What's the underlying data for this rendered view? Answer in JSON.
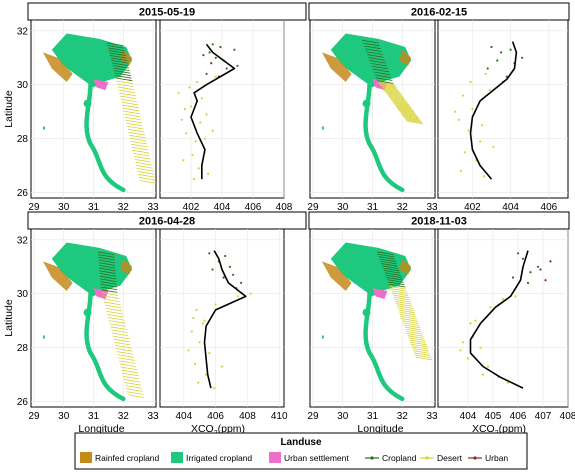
{
  "colors": {
    "rainfed": "#c48a1c",
    "irrigated": "#1ec97f",
    "urban_settlement": "#ee6fc9",
    "cropland_track": "#2f6e1f",
    "desert_track": "#d8d234",
    "urban_track": "#8a2b2b",
    "mean_line": "#000000",
    "grid": "#e6e6e6"
  },
  "shared_axes": {
    "map_xlabel": "Longitude",
    "map_ylabel": "Latitude",
    "map_xticks": [
      "29",
      "30",
      "31",
      "32",
      "33"
    ],
    "lat_ticks": [
      "26",
      "28",
      "30",
      "32"
    ],
    "xco2_xlabel": "XCO",
    "xco2_sub": "2",
    "xco2_unit": "(ppm)"
  },
  "legend": {
    "title": "Landuse",
    "items": [
      {
        "label": "Rainfed cropland",
        "kind": "swatch",
        "color_key": "rainfed"
      },
      {
        "label": "Irrigated cropland",
        "kind": "swatch",
        "color_key": "irrigated"
      },
      {
        "label": "Urban settlement",
        "kind": "swatch",
        "color_key": "urban_settlement"
      },
      {
        "label": "Cropland",
        "kind": "line",
        "color_key": "cropland_track"
      },
      {
        "label": "Desert",
        "kind": "line",
        "color_key": "desert_track"
      },
      {
        "label": "Urban",
        "kind": "line",
        "color_key": "urban_track"
      }
    ]
  },
  "chart_data": [
    {
      "type": "scatter",
      "title": "2015-05-19",
      "xlabel": "XCO2(ppm)",
      "ylabel": "Latitude",
      "xlim": [
        400,
        408
      ],
      "ylim": [
        25.8,
        32.4
      ],
      "xticks": [
        "402",
        "404",
        "406",
        "408"
      ],
      "series": [
        {
          "name": "Cropland",
          "points": [
            [
              403.2,
              31.2
            ],
            [
              404.3,
              30.6
            ],
            [
              403.6,
              31.0
            ],
            [
              403.0,
              30.4
            ],
            [
              404.8,
              31.3
            ],
            [
              403.4,
              31.5
            ],
            [
              404.1,
              30.9
            ],
            [
              405.0,
              30.7
            ],
            [
              402.8,
              31.1
            ],
            [
              403.9,
              31.4
            ]
          ]
        },
        {
          "name": "Desert",
          "points": [
            [
              401.2,
              29.7
            ],
            [
              402.0,
              29.2
            ],
            [
              402.6,
              28.6
            ],
            [
              401.7,
              28.2
            ],
            [
              402.3,
              27.9
            ],
            [
              402.9,
              27.5
            ],
            [
              401.5,
              27.2
            ],
            [
              402.5,
              26.9
            ],
            [
              403.1,
              26.7
            ],
            [
              401.9,
              29.9
            ],
            [
              402.4,
              30.1
            ],
            [
              403.0,
              28.9
            ],
            [
              402.1,
              27.4
            ],
            [
              403.4,
              28.3
            ],
            [
              401.4,
              28.7
            ],
            [
              402.7,
              29.5
            ],
            [
              403.6,
              30.3
            ],
            [
              402.2,
              26.5
            ],
            [
              401.6,
              29.1
            ],
            [
              402.9,
              28.0
            ]
          ]
        },
        {
          "name": "Urban",
          "points": [
            [
              403.8,
              30.3
            ],
            [
              403.3,
              30.8
            ]
          ]
        }
      ],
      "mean_line": [
        [
          402.7,
          26.5
        ],
        [
          402.7,
          27.0
        ],
        [
          402.9,
          27.6
        ],
        [
          402.4,
          28.2
        ],
        [
          402.0,
          28.8
        ],
        [
          402.4,
          29.4
        ],
        [
          402.2,
          29.7
        ],
        [
          403.0,
          30.0
        ],
        [
          404.8,
          30.6
        ],
        [
          403.4,
          31.2
        ],
        [
          403.0,
          31.5
        ]
      ]
    },
    {
      "type": "scatter",
      "title": "2016-02-15",
      "xlabel": "XCO2(ppm)",
      "ylabel": "Latitude",
      "xlim": [
        400.2,
        407
      ],
      "ylim": [
        25.8,
        32.4
      ],
      "xticks": [
        "402",
        "404",
        "406"
      ],
      "series": [
        {
          "name": "Cropland",
          "points": [
            [
              403.5,
              31.2
            ],
            [
              404.2,
              30.8
            ],
            [
              403.0,
              31.4
            ],
            [
              404.6,
              31.0
            ],
            [
              402.8,
              30.6
            ],
            [
              403.8,
              30.3
            ],
            [
              404.0,
              31.3
            ],
            [
              403.3,
              30.9
            ]
          ]
        },
        {
          "name": "Desert",
          "points": [
            [
              401.5,
              29.6
            ],
            [
              402.0,
              29.1
            ],
            [
              401.3,
              28.7
            ],
            [
              401.8,
              28.3
            ],
            [
              402.4,
              27.9
            ],
            [
              401.6,
              27.5
            ],
            [
              402.2,
              27.2
            ],
            [
              401.4,
              26.8
            ],
            [
              402.6,
              26.6
            ],
            [
              402.9,
              29.8
            ],
            [
              401.1,
              29.0
            ],
            [
              402.5,
              28.5
            ],
            [
              403.1,
              27.7
            ],
            [
              401.9,
              30.1
            ],
            [
              402.7,
              30.4
            ]
          ]
        },
        {
          "name": "Urban",
          "points": [
            [
              403.6,
              30.1
            ]
          ]
        }
      ],
      "mean_line": [
        [
          403.0,
          26.5
        ],
        [
          402.4,
          27.0
        ],
        [
          402.0,
          27.6
        ],
        [
          401.9,
          28.2
        ],
        [
          402.0,
          28.8
        ],
        [
          402.4,
          29.4
        ],
        [
          403.1,
          29.8
        ],
        [
          403.8,
          30.2
        ],
        [
          404.2,
          30.6
        ],
        [
          404.3,
          31.2
        ],
        [
          404.1,
          31.6
        ]
      ]
    },
    {
      "type": "scatter",
      "title": "2016-04-28",
      "xlabel": "XCO2(ppm)",
      "ylabel": "Latitude",
      "xlim": [
        402.5,
        410.3
      ],
      "ylim": [
        25.8,
        32.4
      ],
      "xticks": [
        "404",
        "406",
        "408",
        "410"
      ],
      "series": [
        {
          "name": "Cropland",
          "points": [
            [
              406.2,
              31.2
            ],
            [
              407.1,
              30.7
            ],
            [
              406.6,
              31.4
            ],
            [
              405.8,
              30.9
            ],
            [
              407.6,
              30.4
            ],
            [
              406.9,
              31.0
            ],
            [
              405.6,
              31.5
            ]
          ]
        },
        {
          "name": "Desert",
          "points": [
            [
              404.8,
              29.4
            ],
            [
              405.3,
              29.0
            ],
            [
              404.5,
              28.6
            ],
            [
              405.0,
              28.2
            ],
            [
              405.6,
              27.8
            ],
            [
              404.7,
              27.4
            ],
            [
              405.4,
              27.0
            ],
            [
              404.9,
              26.7
            ],
            [
              406.0,
              29.6
            ],
            [
              405.2,
              28.9
            ],
            [
              404.3,
              27.9
            ],
            [
              406.4,
              27.3
            ],
            [
              405.9,
              26.5
            ],
            [
              404.6,
              29.1
            ],
            [
              407.4,
              29.9
            ],
            [
              408.2,
              30.0
            ]
          ]
        },
        {
          "name": "Urban",
          "points": [
            [
              407.3,
              30.2
            ],
            [
              406.5,
              30.6
            ]
          ]
        }
      ],
      "mean_line": [
        [
          405.7,
          26.5
        ],
        [
          405.5,
          27.0
        ],
        [
          405.4,
          27.6
        ],
        [
          405.3,
          28.2
        ],
        [
          405.4,
          28.8
        ],
        [
          406.0,
          29.4
        ],
        [
          407.9,
          29.9
        ],
        [
          406.8,
          30.4
        ],
        [
          406.4,
          30.9
        ],
        [
          406.2,
          31.3
        ],
        [
          405.9,
          31.6
        ]
      ]
    },
    {
      "type": "scatter",
      "title": "2018-11-03",
      "xlabel": "XCO2(ppm)",
      "ylabel": "Latitude",
      "xlim": [
        402.8,
        408
      ],
      "ylim": [
        25.8,
        32.4
      ],
      "xticks": [
        "404",
        "405",
        "406",
        "407",
        "408"
      ],
      "series": [
        {
          "name": "Cropland",
          "points": [
            [
              406.2,
              31.3
            ],
            [
              406.5,
              30.8
            ],
            [
              406.0,
              31.5
            ],
            [
              406.8,
              31.0
            ],
            [
              405.8,
              30.6
            ],
            [
              406.4,
              30.4
            ]
          ]
        },
        {
          "name": "Desert",
          "points": [
            [
              404.2,
              28.4
            ],
            [
              404.5,
              28.0
            ],
            [
              404.0,
              27.6
            ],
            [
              404.8,
              27.3
            ],
            [
              405.2,
              26.9
            ],
            [
              405.6,
              26.7
            ],
            [
              404.3,
              29.0
            ],
            [
              404.9,
              29.5
            ],
            [
              405.4,
              29.8
            ],
            [
              403.8,
              28.2
            ],
            [
              404.6,
              27.0
            ],
            [
              405.9,
              29.9
            ],
            [
              403.7,
              27.9
            ],
            [
              404.1,
              28.9
            ]
          ]
        },
        {
          "name": "Urban",
          "points": [
            [
              406.9,
              30.9
            ],
            [
              407.3,
              31.2
            ],
            [
              407.1,
              30.5
            ]
          ]
        }
      ],
      "mean_line": [
        [
          406.2,
          26.5
        ],
        [
          405.3,
          26.9
        ],
        [
          404.6,
          27.3
        ],
        [
          404.1,
          27.8
        ],
        [
          404.1,
          28.3
        ],
        [
          404.5,
          28.9
        ],
        [
          405.1,
          29.5
        ],
        [
          405.7,
          29.9
        ],
        [
          406.1,
          30.5
        ],
        [
          406.2,
          31.0
        ],
        [
          406.4,
          31.6
        ]
      ]
    }
  ]
}
